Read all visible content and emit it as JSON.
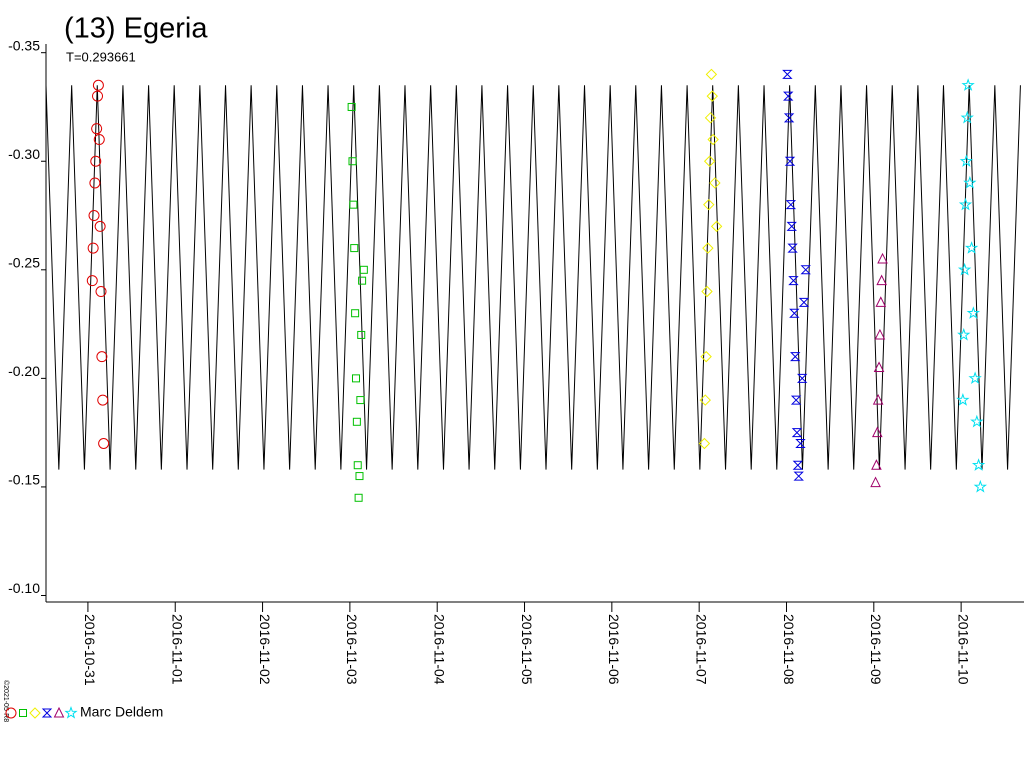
{
  "chart_data": {
    "type": "scatter",
    "title": "(13) Egeria",
    "subtitle": "T=0.293661",
    "observer": "Marc Deldem",
    "copyright": "©2021-05-R8",
    "xlim": [
      57691.52,
      57702.72
    ],
    "ylim": [
      -0.354,
      -0.097
    ],
    "invert_y": true,
    "xticks": [
      {
        "value": 57692,
        "label": "2016-10-31"
      },
      {
        "value": 57693,
        "label": "2016-11-01"
      },
      {
        "value": 57694,
        "label": "2016-11-02"
      },
      {
        "value": 57695,
        "label": "2016-11-03"
      },
      {
        "value": 57696,
        "label": "2016-11-04"
      },
      {
        "value": 57697,
        "label": "2016-11-05"
      },
      {
        "value": 57698,
        "label": "2016-11-06"
      },
      {
        "value": 57699,
        "label": "2016-11-07"
      },
      {
        "value": 57700,
        "label": "2016-11-08"
      },
      {
        "value": 57701,
        "label": "2016-11-09"
      },
      {
        "value": 57702,
        "label": "2016-11-10"
      }
    ],
    "yticks": [
      {
        "value": -0.35,
        "label": "-0.35"
      },
      {
        "value": -0.3,
        "label": "-0.30"
      },
      {
        "value": -0.25,
        "label": "-0.25"
      },
      {
        "value": -0.2,
        "label": "-0.20"
      },
      {
        "value": -0.15,
        "label": "-0.15"
      },
      {
        "value": -0.1,
        "label": "-0.10"
      }
    ],
    "model": {
      "color": "#000000",
      "x": [
        57691.52,
        57691.667,
        57691.814,
        57691.96,
        57692.107,
        57692.254,
        57692.401,
        57692.548,
        57692.695,
        57692.841,
        57692.988,
        57693.135,
        57693.282,
        57693.429,
        57693.576,
        57693.722,
        57693.869,
        57694.016,
        57694.163,
        57694.31,
        57694.457,
        57694.603,
        57694.75,
        57694.897,
        57695.044,
        57695.191,
        57695.338,
        57695.484,
        57695.631,
        57695.778,
        57695.925,
        57696.072,
        57696.219,
        57696.365,
        57696.512,
        57696.659,
        57696.806,
        57696.953,
        57697.1,
        57697.246,
        57697.393,
        57697.54,
        57697.687,
        57697.834,
        57697.981,
        57698.127,
        57698.274,
        57698.421,
        57698.568,
        57698.715,
        57698.862,
        57699.008,
        57699.155,
        57699.302,
        57699.449,
        57699.596,
        57699.743,
        57699.889,
        57700.036,
        57700.183,
        57700.33,
        57700.477,
        57700.624,
        57700.77,
        57700.917,
        57701.064,
        57701.211,
        57701.358,
        57701.505,
        57701.651,
        57701.798,
        57701.945,
        57702.092,
        57702.239,
        57702.386,
        57702.532,
        57702.679
      ],
      "values": [
        -0.335,
        -0.158,
        -0.335,
        -0.158,
        -0.335,
        -0.158,
        -0.335,
        -0.158,
        -0.335,
        -0.158,
        -0.335,
        -0.158,
        -0.335,
        -0.158,
        -0.335,
        -0.158,
        -0.335,
        -0.158,
        -0.335,
        -0.158,
        -0.335,
        -0.158,
        -0.335,
        -0.158,
        -0.335,
        -0.158,
        -0.335,
        -0.158,
        -0.335,
        -0.158,
        -0.335,
        -0.158,
        -0.335,
        -0.158,
        -0.335,
        -0.158,
        -0.335,
        -0.158,
        -0.335,
        -0.158,
        -0.335,
        -0.158,
        -0.335,
        -0.158,
        -0.335,
        -0.158,
        -0.335,
        -0.158,
        -0.335,
        -0.158,
        -0.335,
        -0.158,
        -0.335,
        -0.158,
        -0.335,
        -0.158,
        -0.335,
        -0.158,
        -0.335,
        -0.158,
        -0.335,
        -0.158,
        -0.335,
        -0.158,
        -0.335,
        -0.158,
        -0.335,
        -0.158,
        -0.335,
        -0.158,
        -0.335,
        -0.158,
        -0.335,
        -0.158,
        -0.335,
        -0.158,
        -0.335
      ]
    },
    "series": [
      {
        "color": "#e00000",
        "marker": "circle",
        "x": [
          57692.05,
          57692.06,
          57692.07,
          57692.08,
          57692.09,
          57692.1,
          57692.11,
          57692.12,
          57692.13,
          57692.14,
          57692.15,
          57692.16,
          57692.17,
          57692.18
        ],
        "values": [
          -0.245,
          -0.26,
          -0.275,
          -0.29,
          -0.3,
          -0.315,
          -0.33,
          -0.335,
          -0.31,
          -0.27,
          -0.24,
          -0.21,
          -0.19,
          -0.17
        ]
      },
      {
        "color": "#00c000",
        "marker": "square",
        "x": [
          57695.02,
          57695.03,
          57695.04,
          57695.05,
          57695.06,
          57695.07,
          57695.08,
          57695.09,
          57695.1,
          57695.11,
          57695.12,
          57695.13,
          57695.14,
          57695.16
        ],
        "values": [
          -0.325,
          -0.3,
          -0.28,
          -0.26,
          -0.23,
          -0.2,
          -0.18,
          -0.16,
          -0.145,
          -0.155,
          -0.19,
          -0.22,
          -0.245,
          -0.25
        ]
      },
      {
        "color": "#f0f000",
        "marker": "diamond",
        "x": [
          57699.06,
          57699.07,
          57699.08,
          57699.09,
          57699.1,
          57699.11,
          57699.12,
          57699.13,
          57699.14,
          57699.15,
          57699.16,
          57699.18,
          57699.2
        ],
        "values": [
          -0.17,
          -0.19,
          -0.21,
          -0.24,
          -0.26,
          -0.28,
          -0.3,
          -0.32,
          -0.34,
          -0.33,
          -0.31,
          -0.29,
          -0.27
        ]
      },
      {
        "color": "#0000e0",
        "marker": "bowtie",
        "x": [
          57700.01,
          57700.02,
          57700.03,
          57700.04,
          57700.05,
          57700.06,
          57700.07,
          57700.08,
          57700.09,
          57700.1,
          57700.11,
          57700.12,
          57700.13,
          57700.14,
          57700.16,
          57700.18,
          57700.2,
          57700.22
        ],
        "values": [
          -0.34,
          -0.33,
          -0.32,
          -0.3,
          -0.28,
          -0.27,
          -0.26,
          -0.245,
          -0.23,
          -0.21,
          -0.19,
          -0.175,
          -0.16,
          -0.155,
          -0.17,
          -0.2,
          -0.235,
          -0.25
        ]
      },
      {
        "color": "#a0006a",
        "marker": "triangle",
        "x": [
          57701.02,
          57701.03,
          57701.04,
          57701.05,
          57701.06,
          57701.07,
          57701.08,
          57701.09,
          57701.1
        ],
        "values": [
          -0.152,
          -0.16,
          -0.175,
          -0.19,
          -0.205,
          -0.22,
          -0.235,
          -0.245,
          -0.255
        ]
      },
      {
        "color": "#00e0f0",
        "marker": "star",
        "x": [
          57702.02,
          57702.03,
          57702.04,
          57702.05,
          57702.06,
          57702.07,
          57702.08,
          57702.1,
          57702.12,
          57702.14,
          57702.16,
          57702.18,
          57702.2,
          57702.22
        ],
        "values": [
          -0.19,
          -0.22,
          -0.25,
          -0.28,
          -0.3,
          -0.32,
          -0.335,
          -0.29,
          -0.26,
          -0.23,
          -0.2,
          -0.18,
          -0.16,
          -0.15
        ]
      }
    ]
  }
}
